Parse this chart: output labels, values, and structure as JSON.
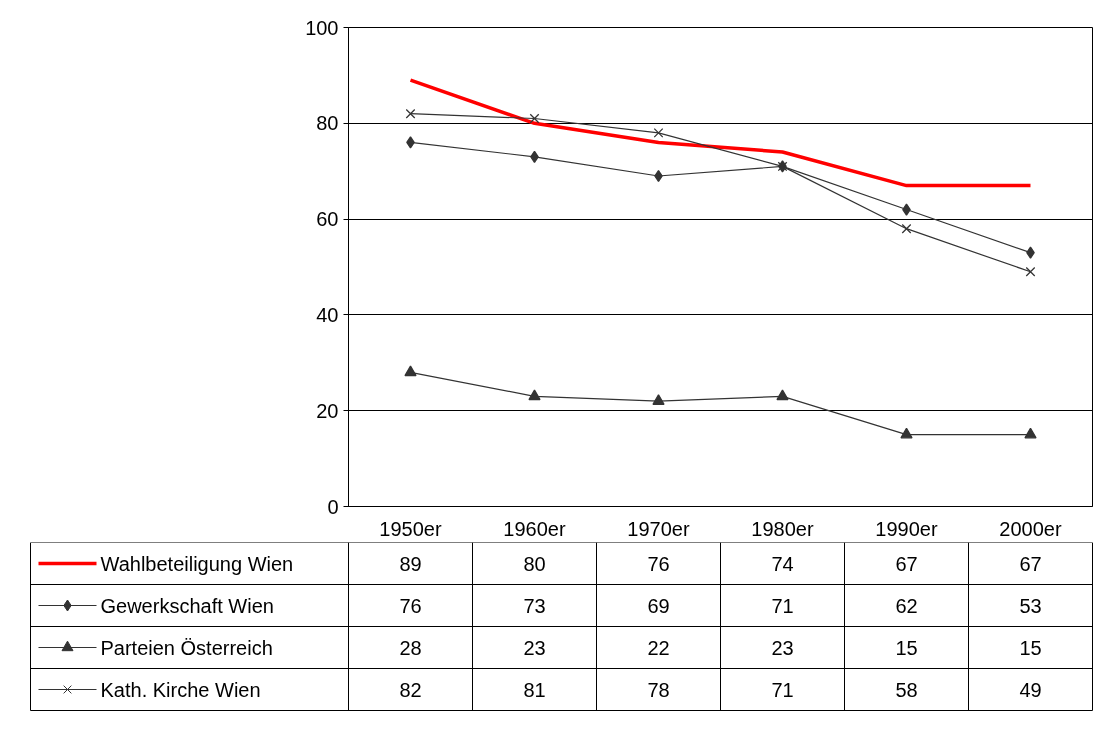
{
  "chart_data": {
    "type": "line",
    "categories": [
      "1950er",
      "1960er",
      "1970er",
      "1980er",
      "1990er",
      "2000er"
    ],
    "series": [
      {
        "name": "Wahlbeteiligung Wien",
        "color": "#ff0000",
        "marker": "none",
        "values": [
          89,
          80,
          76,
          74,
          67,
          67
        ]
      },
      {
        "name": "Gewerkschaft Wien",
        "color": "#333333",
        "marker": "diamond",
        "values": [
          76,
          73,
          69,
          71,
          62,
          53
        ]
      },
      {
        "name": "Parteien Österreich",
        "color": "#333333",
        "marker": "triangle",
        "values": [
          28,
          23,
          22,
          23,
          15,
          15
        ]
      },
      {
        "name": "Kath. Kirche Wien",
        "color": "#333333",
        "marker": "cross",
        "values": [
          82,
          81,
          78,
          71,
          58,
          49
        ]
      }
    ],
    "ylim": [
      0,
      100
    ],
    "yticks": [
      0,
      20,
      40,
      60,
      80,
      100
    ],
    "grid": "y",
    "legend": "bottom",
    "data_labels": true,
    "line_style": "solid"
  }
}
